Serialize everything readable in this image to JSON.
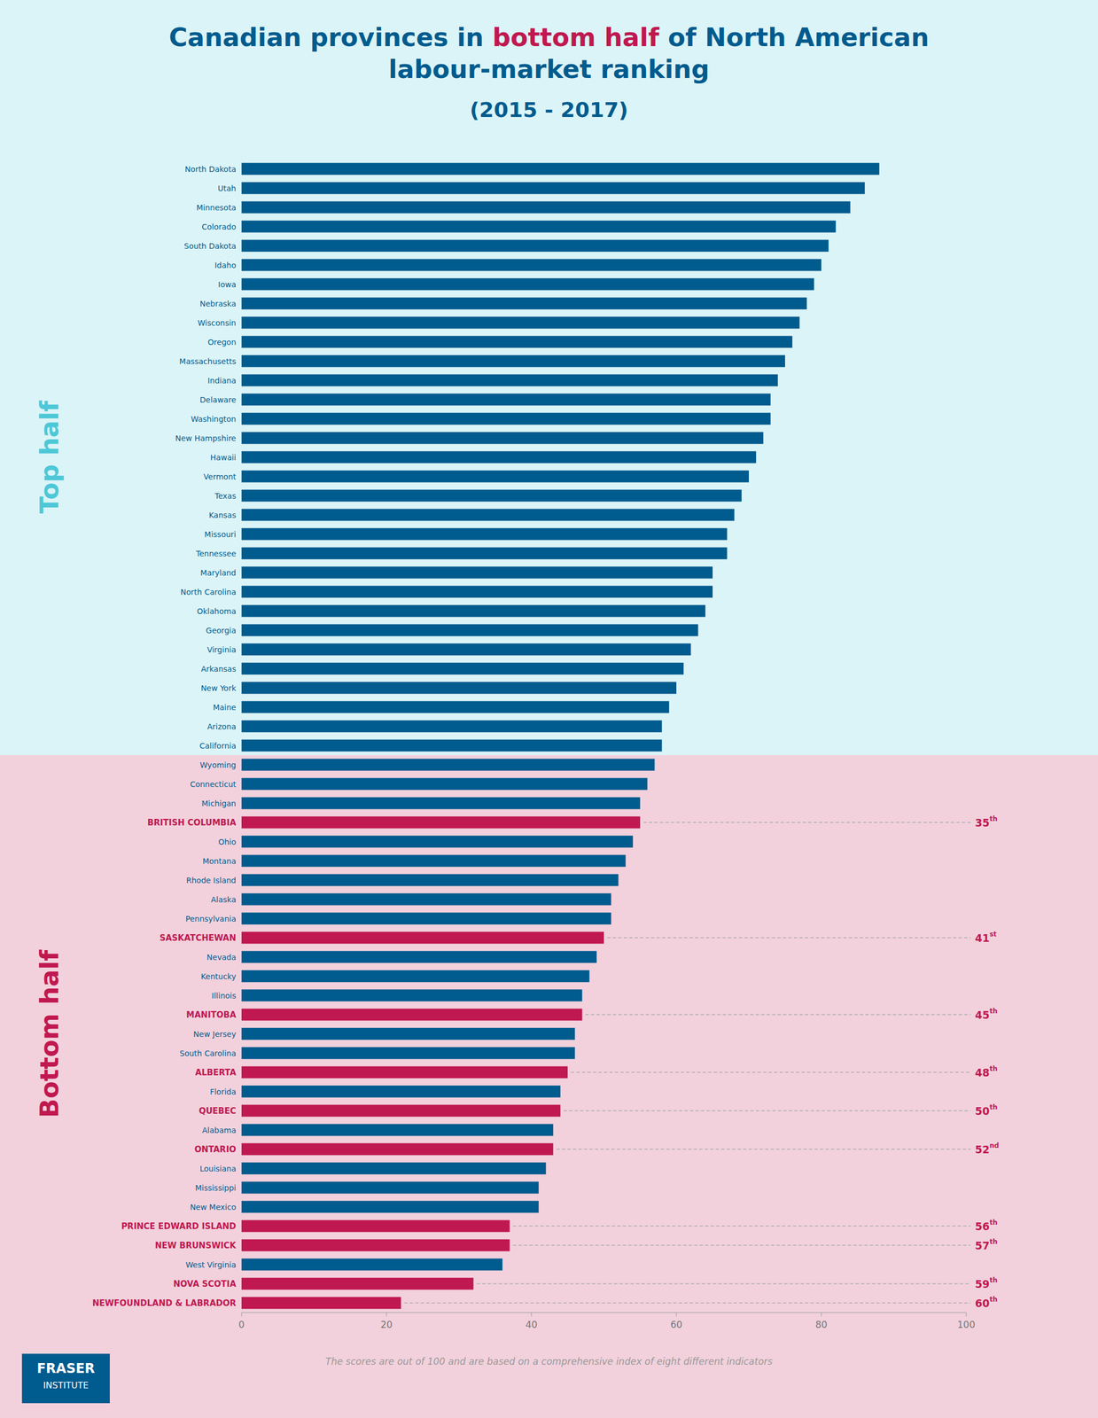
{
  "chart_data": {
    "type": "bar",
    "orientation": "horizontal",
    "title": "Canadian provinces in bottom half of North American labour-market ranking",
    "subtitle": "(2015 - 2017)",
    "categories": [
      "North Dakota",
      "Utah",
      "Minnesota",
      "Colorado",
      "South Dakota",
      "Idaho",
      "Iowa",
      "Nebraska",
      "Wisconsin",
      "Oregon",
      "Massachusetts",
      "Indiana",
      "Delaware",
      "Washington",
      "New Hampshire",
      "Hawaii",
      "Vermont",
      "Texas",
      "Kansas",
      "Missouri",
      "Tennessee",
      "Maryland",
      "North Carolina",
      "Oklahoma",
      "Georgia",
      "Virginia",
      "Arkansas",
      "New York",
      "Maine",
      "Arizona",
      "California",
      "Wyoming",
      "Connecticut",
      "Michigan",
      "BRITISH COLUMBIA",
      "Ohio",
      "Montana",
      "Rhode Island",
      "Alaska",
      "Pennsylvania",
      "SASKATCHEWAN",
      "Nevada",
      "Kentucky",
      "Illinois",
      "MANITOBA",
      "New Jersey",
      "South Carolina",
      "ALBERTA",
      "Florida",
      "QUEBEC",
      "Alabama",
      "ONTARIO",
      "Louisiana",
      "Mississippi",
      "New Mexico",
      "PRINCE EDWARD ISLAND",
      "NEW BRUNSWICK",
      "West Virginia",
      "NOVA SCOTIA",
      "NEWFOUNDLAND & LABRADOR"
    ],
    "values": [
      88,
      86,
      84,
      82,
      81,
      80,
      79,
      78,
      77,
      76,
      75,
      74,
      73,
      73,
      72,
      71,
      70,
      69,
      68,
      67,
      67,
      65,
      65,
      64,
      63,
      62,
      61,
      60,
      59,
      58,
      58,
      57,
      56,
      55,
      55,
      54,
      53,
      52,
      51,
      51,
      50,
      49,
      48,
      47,
      47,
      46,
      46,
      45,
      44,
      44,
      43,
      43,
      42,
      41,
      41,
      37,
      37,
      36,
      32,
      22
    ],
    "colors": [
      "#005b8e",
      "#005b8e",
      "#005b8e",
      "#005b8e",
      "#005b8e",
      "#005b8e",
      "#005b8e",
      "#005b8e",
      "#005b8e",
      "#005b8e",
      "#005b8e",
      "#005b8e",
      "#005b8e",
      "#005b8e",
      "#005b8e",
      "#005b8e",
      "#005b8e",
      "#005b8e",
      "#005b8e",
      "#005b8e",
      "#005b8e",
      "#005b8e",
      "#005b8e",
      "#005b8e",
      "#005b8e",
      "#005b8e",
      "#005b8e",
      "#005b8e",
      "#005b8e",
      "#005b8e",
      "#005b8e",
      "#005b8e",
      "#005b8e",
      "#005b8e",
      "#c01850",
      "#005b8e",
      "#005b8e",
      "#005b8e",
      "#005b8e",
      "#005b8e",
      "#c01850",
      "#005b8e",
      "#005b8e",
      "#005b8e",
      "#c01850",
      "#005b8e",
      "#005b8e",
      "#c01850",
      "#005b8e",
      "#c01850",
      "#005b8e",
      "#c01850",
      "#005b8e",
      "#005b8e",
      "#005b8e",
      "#c01850",
      "#c01850",
      "#005b8e",
      "#c01850",
      "#c01850"
    ],
    "xlim": [
      0,
      100
    ],
    "xticks": [
      0,
      20,
      40,
      60,
      80,
      100
    ],
    "grid": false,
    "annotations": [
      {
        "text": "Top half",
        "color": "#4dc8d8",
        "from": "North Dakota",
        "to": "California"
      },
      {
        "text": "Bottom half",
        "color": "#c01850",
        "from": "Wyoming",
        "to": "NEWFOUNDLAND & LABRADOR"
      },
      {
        "text": "35th",
        "category": "BRITISH COLUMBIA",
        "color": "#c01850"
      },
      {
        "text": "41st",
        "category": "SASKATCHEWAN",
        "color": "#c01850"
      },
      {
        "text": "45th",
        "category": "MANITOBA",
        "color": "#c01850"
      },
      {
        "text": "48th",
        "category": "ALBERTA",
        "color": "#c01850"
      },
      {
        "text": "50th",
        "category": "QUEBEC",
        "color": "#c01850"
      },
      {
        "text": "52nd",
        "category": "ONTARIO",
        "color": "#c01850"
      },
      {
        "text": "56th",
        "category": "PRINCE EDWARD ISLAND",
        "color": "#c01850"
      },
      {
        "text": "57th",
        "category": "NEW BRUNSWICK",
        "color": "#c01850"
      },
      {
        "text": "59th",
        "category": "NOVA SCOTIA",
        "color": "#c01850"
      },
      {
        "text": "60th",
        "category": "NEWFOUNDLAND & LABRADOR",
        "color": "#c01850"
      },
      {
        "text": "The scores are out of 100 and are based on a comprehensive index of eight different indicators"
      },
      {
        "text": "FRASER\nINSTITUTE",
        "color": "#005b8e"
      }
    ]
  }
}
